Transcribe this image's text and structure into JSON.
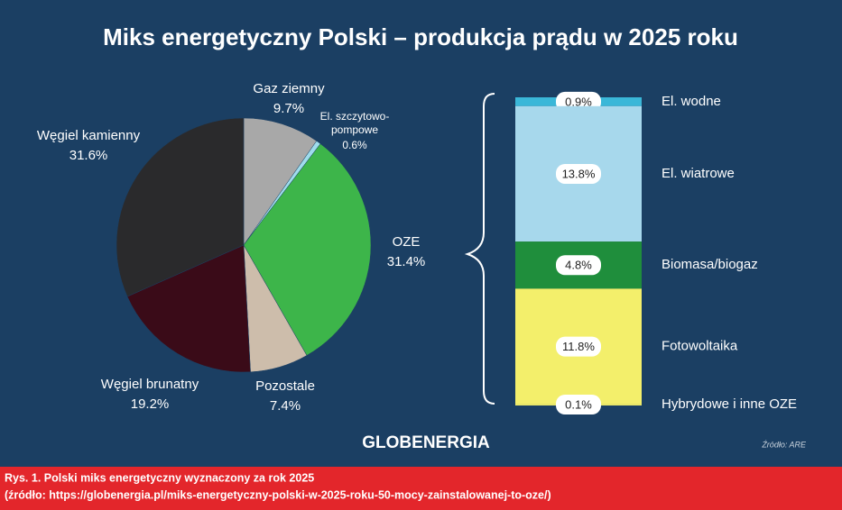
{
  "chart_data": [
    {
      "type": "pie",
      "title": "Miks energetyczny Polski – produkcja prądu w 2025 roku",
      "categories": [
        "Gaz ziemny",
        "El. szczytowo-pompowe",
        "OZE",
        "Pozostale",
        "Węgiel brunatny",
        "Węgiel kamienny"
      ],
      "values": [
        9.7,
        0.6,
        31.4,
        7.4,
        19.2,
        31.6
      ],
      "value_labels": [
        "9.7%",
        "0.6%",
        "31.4%",
        "7.4%",
        "19.2%",
        "31.6%"
      ],
      "colors": [
        "#a8a8a8",
        "#9fdcec",
        "#3db54a",
        "#cdbdab",
        "#3a0b18",
        "#2a2a2c"
      ]
    },
    {
      "type": "stacked_bar",
      "series": [
        {
          "name": "El. wodne",
          "color": "#3ab7d8",
          "values": [
            0.9
          ],
          "value_labels": [
            "0.9%"
          ]
        },
        {
          "name": "El. wiatrowe",
          "color": "#a7d8ec",
          "values": [
            13.8
          ],
          "value_labels": [
            "13.8%"
          ]
        },
        {
          "name": "Biomasa/biogaz",
          "color": "#1f8e3c",
          "values": [
            4.8
          ],
          "value_labels": [
            "4.8%"
          ]
        },
        {
          "name": "Fotowoltaika",
          "color": "#f3ef6b",
          "values": [
            11.8
          ],
          "value_labels": [
            "11.8%"
          ]
        },
        {
          "name": "Hybrydowe i inne OZE",
          "color": "#f3ef6b",
          "values": [
            0.1
          ],
          "value_labels": [
            "0.1%"
          ]
        }
      ]
    }
  ],
  "brand": "GLOBENERGIA",
  "source": "Źródło: ARE",
  "caption": {
    "line1": "Rys. 1. Polski miks energetyczny wyznaczony za rok 2025",
    "line2": "(źródło: https://globenergia.pl/miks-energetyczny-polski-w-2025-roku-50-mocy-zainstalowanej-to-oze/)"
  }
}
